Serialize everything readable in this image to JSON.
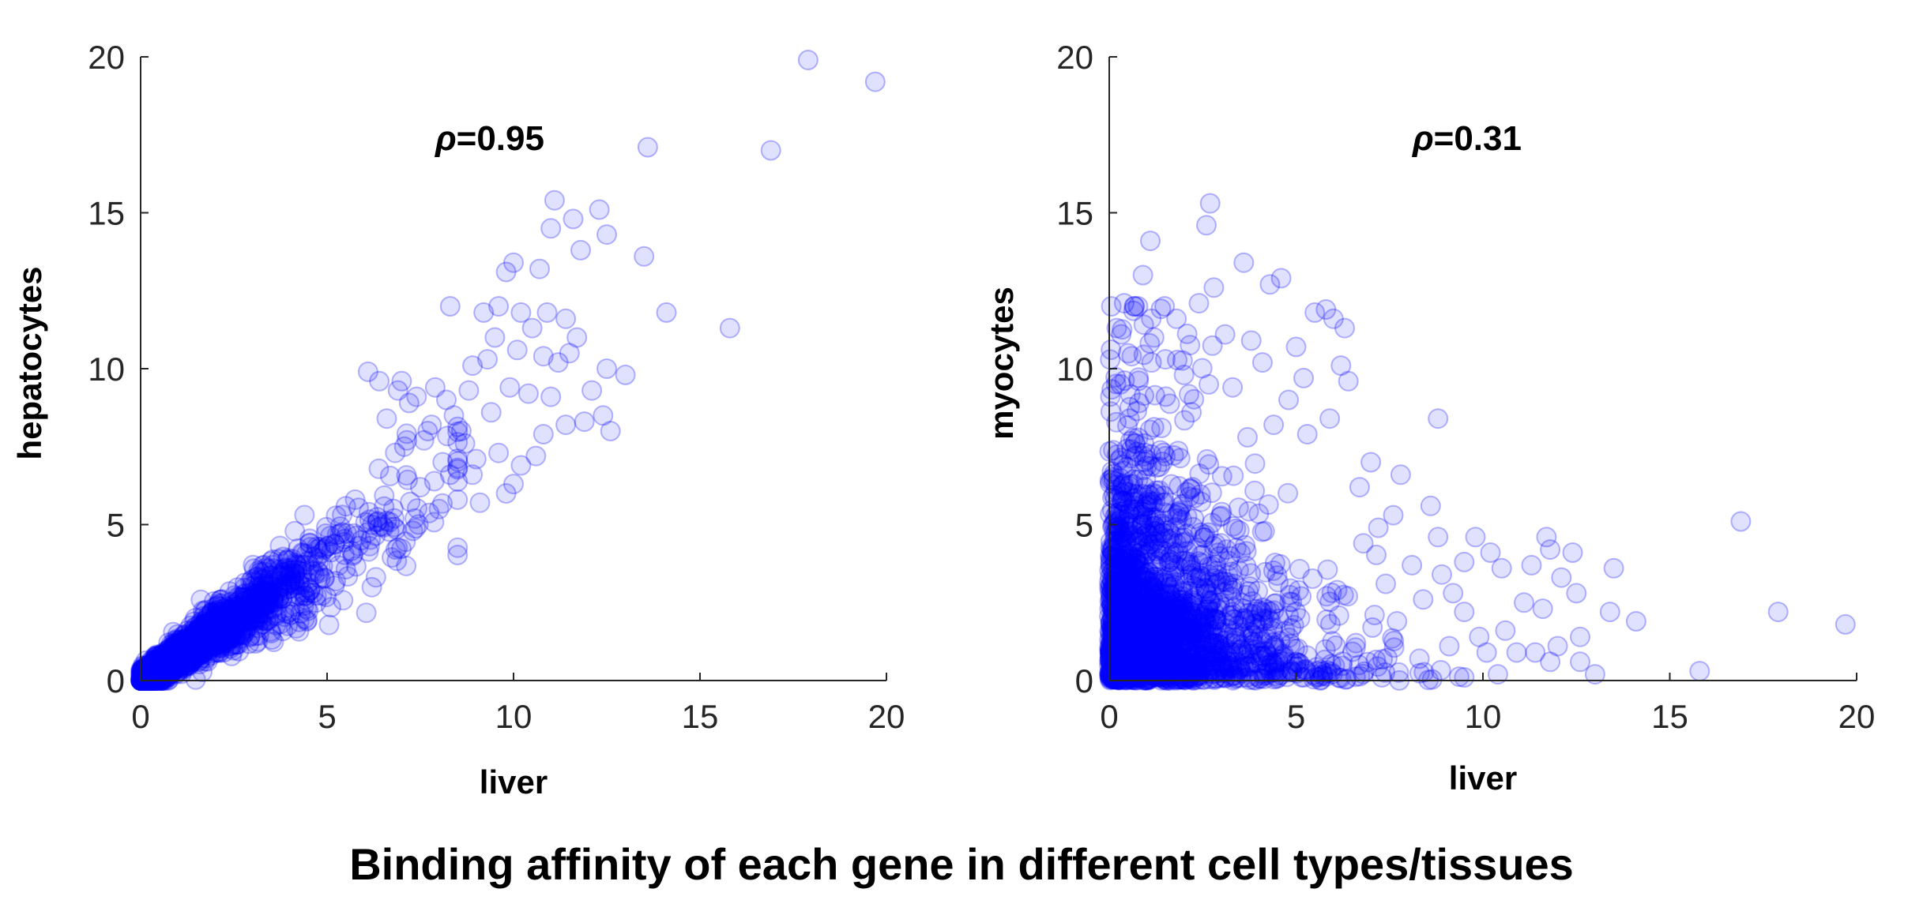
{
  "caption": "Binding affinity of each gene in different cell types/tissues",
  "colors": {
    "marker": "#0000ff",
    "axis": "#262626",
    "text": "#000000"
  },
  "chart_data": [
    {
      "type": "scatter",
      "title": "",
      "xlabel": "liver",
      "ylabel": "hepatocytes",
      "annotation_symbol": "ρ",
      "annotation_value": "=0.95",
      "xlim": [
        0,
        20
      ],
      "ylim": [
        0,
        20
      ],
      "xticks": [
        "0",
        "5",
        "10",
        "15",
        "20"
      ],
      "yticks": [
        "0",
        "5",
        "10",
        "15",
        "20"
      ],
      "grid": false,
      "marker": {
        "shape": "circle",
        "filled": true,
        "color": "#0000ff",
        "alpha": 0.12
      },
      "n_background_points": 2200,
      "points": [
        [
          17.9,
          19.9
        ],
        [
          19.7,
          19.2
        ],
        [
          13.6,
          17.1
        ],
        [
          16.9,
          17.0
        ],
        [
          11.1,
          15.4
        ],
        [
          12.3,
          15.1
        ],
        [
          11.6,
          14.8
        ],
        [
          11.0,
          14.5
        ],
        [
          12.5,
          14.3
        ],
        [
          11.8,
          13.8
        ],
        [
          13.5,
          13.6
        ],
        [
          10.7,
          13.2
        ],
        [
          9.8,
          13.1
        ],
        [
          10.0,
          13.4
        ],
        [
          8.3,
          12.0
        ],
        [
          9.2,
          11.8
        ],
        [
          9.6,
          12.0
        ],
        [
          10.2,
          11.8
        ],
        [
          10.9,
          11.8
        ],
        [
          11.4,
          11.6
        ],
        [
          14.1,
          11.8
        ],
        [
          15.8,
          11.3
        ],
        [
          9.5,
          11.0
        ],
        [
          10.5,
          11.3
        ],
        [
          11.7,
          11.0
        ],
        [
          10.1,
          10.6
        ],
        [
          10.8,
          10.4
        ],
        [
          11.2,
          10.2
        ],
        [
          11.5,
          10.5
        ],
        [
          12.5,
          10.0
        ],
        [
          8.9,
          10.1
        ],
        [
          9.3,
          10.3
        ],
        [
          13.0,
          9.8
        ],
        [
          12.1,
          9.3
        ],
        [
          11.0,
          9.1
        ],
        [
          10.4,
          9.2
        ],
        [
          9.9,
          9.4
        ],
        [
          12.4,
          8.5
        ],
        [
          11.9,
          8.3
        ],
        [
          12.6,
          8.0
        ],
        [
          11.4,
          8.2
        ],
        [
          10.8,
          7.9
        ],
        [
          9.6,
          7.3
        ],
        [
          10.6,
          7.2
        ],
        [
          10.2,
          6.9
        ],
        [
          8.9,
          6.6
        ],
        [
          10.0,
          6.3
        ],
        [
          9.8,
          6.0
        ],
        [
          8.5,
          5.8
        ],
        [
          9.1,
          5.7
        ],
        [
          7.8,
          8.2
        ],
        [
          8.4,
          8.5
        ],
        [
          8.8,
          9.3
        ],
        [
          7.6,
          7.7
        ],
        [
          8.1,
          7.0
        ],
        [
          7.2,
          8.9
        ],
        [
          6.9,
          9.3
        ],
        [
          6.1,
          9.9
        ],
        [
          6.4,
          9.6
        ],
        [
          7.0,
          9.6
        ],
        [
          7.4,
          9.1
        ],
        [
          7.9,
          9.4
        ],
        [
          8.2,
          9.0
        ],
        [
          9.4,
          8.6
        ],
        [
          8.7,
          7.6
        ],
        [
          7.5,
          6.2
        ],
        [
          8.0,
          5.5
        ],
        [
          6.8,
          5.2
        ],
        [
          7.3,
          4.8
        ],
        [
          8.3,
          6.6
        ],
        [
          9.0,
          7.1
        ],
        [
          6.6,
          8.4
        ],
        [
          7.7,
          8.0
        ],
        [
          8.6,
          8.0
        ]
      ]
    },
    {
      "type": "scatter",
      "title": "",
      "xlabel": "liver",
      "ylabel": "myocytes",
      "annotation_symbol": "ρ",
      "annotation_value": "=0.31",
      "xlim": [
        0,
        20
      ],
      "ylim": [
        0,
        20
      ],
      "xticks": [
        "0",
        "5",
        "10",
        "15",
        "20"
      ],
      "yticks": [
        "0",
        "5",
        "10",
        "15",
        "20"
      ],
      "grid": false,
      "marker": {
        "shape": "circle",
        "filled": true,
        "color": "#0000ff",
        "alpha": 0.12
      },
      "n_background_points": 2200,
      "points": [
        [
          16.9,
          5.1
        ],
        [
          17.9,
          2.2
        ],
        [
          19.7,
          1.8
        ],
        [
          15.8,
          0.3
        ],
        [
          13.5,
          3.6
        ],
        [
          14.1,
          1.9
        ],
        [
          13.4,
          2.2
        ],
        [
          12.4,
          4.1
        ],
        [
          11.7,
          4.6
        ],
        [
          11.8,
          4.2
        ],
        [
          12.5,
          2.8
        ],
        [
          11.3,
          3.7
        ],
        [
          12.1,
          3.3
        ],
        [
          11.1,
          2.5
        ],
        [
          11.6,
          2.3
        ],
        [
          12.6,
          1.4
        ],
        [
          12.0,
          1.1
        ],
        [
          11.4,
          0.9
        ],
        [
          11.8,
          0.6
        ],
        [
          13.0,
          0.2
        ],
        [
          12.6,
          0.6
        ],
        [
          10.9,
          0.9
        ],
        [
          10.4,
          0.2
        ],
        [
          10.5,
          3.6
        ],
        [
          10.2,
          4.1
        ],
        [
          9.5,
          3.8
        ],
        [
          9.8,
          4.6
        ],
        [
          10.6,
          1.6
        ],
        [
          10.1,
          0.9
        ],
        [
          9.9,
          1.4
        ],
        [
          9.5,
          2.2
        ],
        [
          9.2,
          2.8
        ],
        [
          8.9,
          3.4
        ],
        [
          8.8,
          4.6
        ],
        [
          8.6,
          5.6
        ],
        [
          8.8,
          8.4
        ],
        [
          7.6,
          5.3
        ],
        [
          7.2,
          4.9
        ],
        [
          6.7,
          6.2
        ],
        [
          6.4,
          9.6
        ],
        [
          6.2,
          10.1
        ],
        [
          6.3,
          11.3
        ],
        [
          6.0,
          11.6
        ],
        [
          5.8,
          11.9
        ],
        [
          5.5,
          11.8
        ],
        [
          4.6,
          12.9
        ],
        [
          4.3,
          12.7
        ],
        [
          3.6,
          13.4
        ],
        [
          2.7,
          15.3
        ],
        [
          2.6,
          14.6
        ],
        [
          1.1,
          14.1
        ],
        [
          0.9,
          13.0
        ],
        [
          0.4,
          12.1
        ],
        [
          2.8,
          12.6
        ],
        [
          2.4,
          12.1
        ],
        [
          1.8,
          11.6
        ],
        [
          1.2,
          11.0
        ],
        [
          0.6,
          10.4
        ],
        [
          3.1,
          11.1
        ],
        [
          3.8,
          10.9
        ],
        [
          4.1,
          10.2
        ],
        [
          5.0,
          10.7
        ],
        [
          5.2,
          9.7
        ],
        [
          4.8,
          9.0
        ],
        [
          3.3,
          9.4
        ],
        [
          2.0,
          9.8
        ],
        [
          1.5,
          10.3
        ],
        [
          0.2,
          11.3
        ],
        [
          0.3,
          9.5
        ],
        [
          0.8,
          8.9
        ],
        [
          7.0,
          7.0
        ],
        [
          7.8,
          6.6
        ],
        [
          6.8,
          4.4
        ],
        [
          7.4,
          3.1
        ],
        [
          8.1,
          3.7
        ],
        [
          8.4,
          2.6
        ],
        [
          9.1,
          1.1
        ],
        [
          8.3,
          0.7
        ],
        [
          7.7,
          1.9
        ],
        [
          7.1,
          2.1
        ],
        [
          6.6,
          1.2
        ],
        [
          6.1,
          2.9
        ],
        [
          5.9,
          8.4
        ],
        [
          5.3,
          7.9
        ],
        [
          4.4,
          8.2
        ],
        [
          3.7,
          7.8
        ],
        [
          2.2,
          8.6
        ],
        [
          1.4,
          8.1
        ]
      ]
    }
  ]
}
